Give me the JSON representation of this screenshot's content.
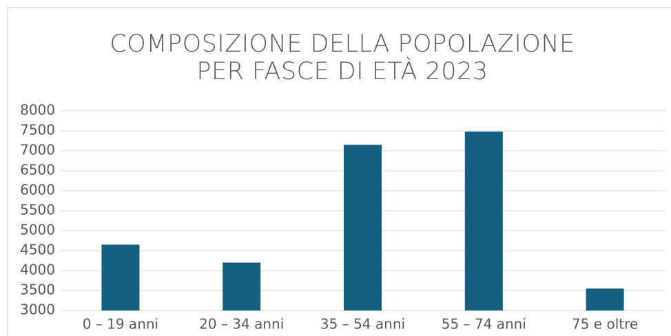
{
  "chart_data": {
    "type": "bar",
    "title": "COMPOSIZIONE DELLA POPOLAZIONE PER FASCE DI ETÀ 2023",
    "categories": [
      "0 – 19 anni",
      "20 – 34 anni",
      "35 – 54 anni",
      "55 – 74 anni",
      "75 e oltre"
    ],
    "values": [
      4650,
      4200,
      7150,
      7480,
      3550
    ],
    "color": "#15607f",
    "ylim": [
      3000,
      8000
    ],
    "yticks": [
      3000,
      3500,
      4000,
      4500,
      5000,
      5500,
      6000,
      6500,
      7000,
      7500,
      8000
    ],
    "grid": true
  }
}
